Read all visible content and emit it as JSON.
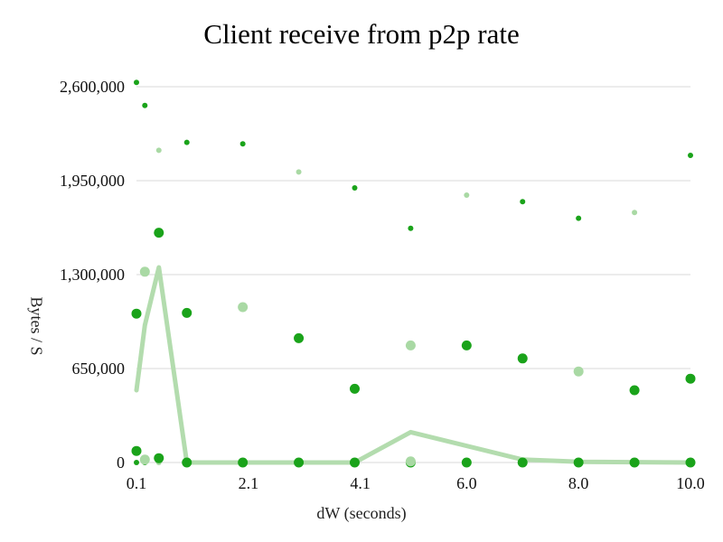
{
  "chart_data": {
    "type": "scatter",
    "title": "Client receive from p2p rate",
    "xlabel": "dW (seconds)",
    "ylabel": "Bytes / S",
    "ylim": [
      0,
      2600000
    ],
    "yticks": [
      0,
      650000,
      1300000,
      1950000,
      2600000
    ],
    "ytick_labels": [
      "0",
      "650,000",
      "1,300,000",
      "1,950,000",
      "2,600,000"
    ],
    "xticks": [
      0.1,
      2.1,
      4.1,
      6.0,
      8.0,
      10.0
    ],
    "xtick_labels": [
      "0.1",
      "2.1",
      "4.1",
      "6.0",
      "8.0",
      "10.0"
    ],
    "xlim": [
      0.1,
      10.0
    ],
    "grid": true,
    "colors": {
      "dark_green": "#1aa31a",
      "light_green": "#a9d9a4",
      "line_green": "#b3dcae",
      "grid": "#d9d9d9"
    },
    "series": [
      {
        "style": "small-dark",
        "points": [
          [
            0.1,
            2630000
          ],
          [
            0.25,
            2470000
          ],
          [
            1.0,
            2215000
          ],
          [
            2.0,
            2205000
          ],
          [
            4.0,
            1900000
          ],
          [
            5.0,
            1620000
          ],
          [
            7.0,
            1805000
          ],
          [
            8.0,
            1690000
          ],
          [
            10.0,
            2125000
          ],
          [
            0.1,
            0
          ],
          [
            0.25,
            0
          ]
        ]
      },
      {
        "style": "small-light",
        "points": [
          [
            0.5,
            2160000
          ],
          [
            3.0,
            2010000
          ],
          [
            6.0,
            1850000
          ],
          [
            9.0,
            1730000
          ],
          [
            0.5,
            0
          ]
        ]
      },
      {
        "style": "large-dark",
        "points": [
          [
            0.1,
            1030000
          ],
          [
            0.5,
            1590000
          ],
          [
            1.0,
            1035000
          ],
          [
            3.0,
            860000
          ],
          [
            4.0,
            510000
          ],
          [
            6.0,
            810000
          ],
          [
            7.0,
            720000
          ],
          [
            9.0,
            500000
          ],
          [
            10.0,
            580000
          ],
          [
            0.1,
            80000
          ],
          [
            0.5,
            30000
          ],
          [
            1.0,
            0
          ],
          [
            2.0,
            0
          ],
          [
            3.0,
            0
          ],
          [
            4.0,
            0
          ],
          [
            5.0,
            0
          ],
          [
            6.0,
            0
          ],
          [
            7.0,
            0
          ],
          [
            8.0,
            0
          ],
          [
            9.0,
            0
          ],
          [
            10.0,
            0
          ]
        ]
      },
      {
        "style": "large-light",
        "points": [
          [
            0.25,
            1320000
          ],
          [
            2.0,
            1075000
          ],
          [
            5.0,
            810000
          ],
          [
            8.0,
            630000
          ],
          [
            0.25,
            20000
          ],
          [
            5.0,
            8000
          ]
        ]
      },
      {
        "style": "line",
        "points": [
          [
            0.1,
            500000
          ],
          [
            0.25,
            950000
          ],
          [
            0.5,
            1350000
          ],
          [
            1.0,
            0
          ],
          [
            2.0,
            0
          ],
          [
            3.0,
            0
          ],
          [
            4.0,
            0
          ],
          [
            5.0,
            210000
          ],
          [
            7.0,
            20000
          ],
          [
            8.0,
            5000
          ],
          [
            10.0,
            0
          ]
        ]
      }
    ]
  }
}
